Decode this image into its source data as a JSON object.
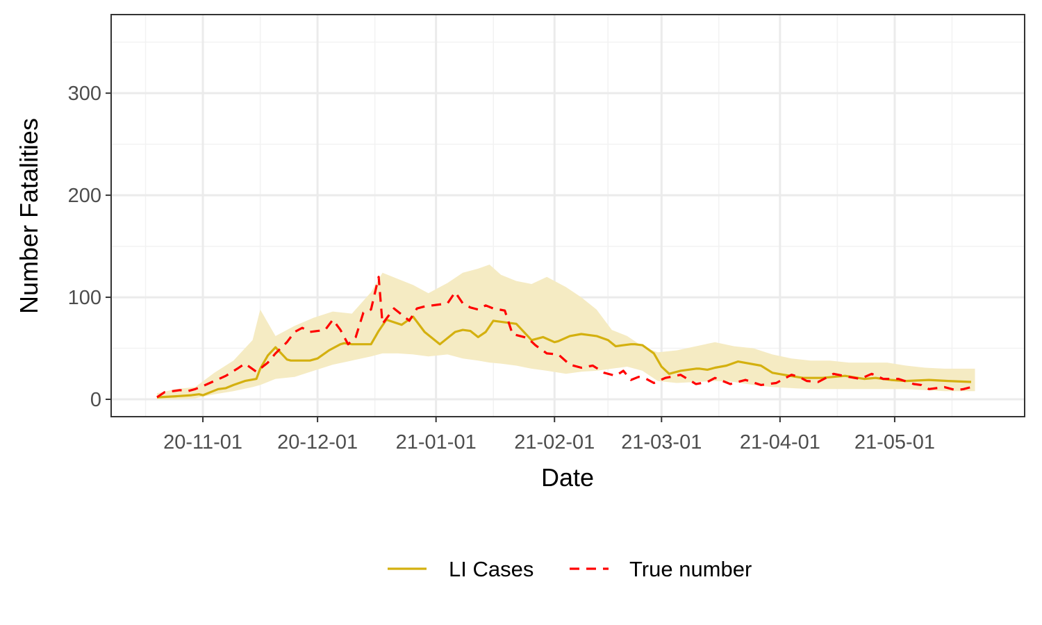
{
  "chart_data": {
    "type": "line",
    "xlabel": "Date",
    "ylabel": "Number Fatalities",
    "ylim": [
      -17,
      377
    ],
    "xlim": [
      "2020-10-08",
      "2021-06-04"
    ],
    "y_ticks": [
      0,
      100,
      200,
      300
    ],
    "x_ticks": [
      "2020-11-01",
      "2020-12-01",
      "2021-01-01",
      "2021-02-01",
      "2021-03-01",
      "2021-04-01",
      "2021-05-01"
    ],
    "x_tick_labels": [
      "20-11-01",
      "20-12-01",
      "21-01-01",
      "21-02-01",
      "21-03-01",
      "21-04-01",
      "21-05-01"
    ],
    "grid": true,
    "legend_position": "bottom",
    "band": {
      "series": "LI Cases",
      "color": "#f5ebc3",
      "x": [
        "2020-10-20",
        "2020-10-25",
        "2020-10-30",
        "2020-11-04",
        "2020-11-09",
        "2020-11-14",
        "2020-11-16",
        "2020-11-20",
        "2020-11-25",
        "2020-11-30",
        "2020-12-05",
        "2020-12-10",
        "2020-12-15",
        "2020-12-18",
        "2020-12-22",
        "2020-12-26",
        "2020-12-30",
        "2021-01-04",
        "2021-01-08",
        "2021-01-12",
        "2021-01-15",
        "2021-01-18",
        "2021-01-22",
        "2021-01-26",
        "2021-01-30",
        "2021-02-04",
        "2021-02-08",
        "2021-02-12",
        "2021-02-16",
        "2021-02-20",
        "2021-02-24",
        "2021-02-28",
        "2021-03-05",
        "2021-03-10",
        "2021-03-15",
        "2021-03-20",
        "2021-03-25",
        "2021-03-30",
        "2021-04-04",
        "2021-04-09",
        "2021-04-14",
        "2021-04-19",
        "2021-04-24",
        "2021-04-29",
        "2021-05-04",
        "2021-05-09",
        "2021-05-14",
        "2021-05-19",
        "2021-05-22"
      ],
      "lower": [
        0,
        0,
        1,
        5,
        8,
        12,
        14,
        20,
        22,
        28,
        34,
        38,
        42,
        45,
        45,
        44,
        42,
        44,
        40,
        38,
        36,
        35,
        33,
        30,
        28,
        25,
        27,
        28,
        30,
        32,
        28,
        18,
        16,
        17,
        18,
        17,
        14,
        12,
        11,
        10,
        10,
        10,
        10,
        10,
        10,
        9,
        8,
        8,
        8
      ],
      "upper": [
        6,
        10,
        12,
        26,
        38,
        58,
        88,
        62,
        72,
        80,
        86,
        84,
        105,
        124,
        118,
        112,
        104,
        114,
        124,
        128,
        132,
        122,
        116,
        113,
        120,
        110,
        100,
        88,
        68,
        62,
        52,
        46,
        48,
        52,
        56,
        52,
        50,
        44,
        40,
        38,
        38,
        36,
        36,
        36,
        33,
        31,
        30,
        30,
        30
      ]
    },
    "series": [
      {
        "name": "LI Cases",
        "color": "#d4b00f",
        "dash": "solid",
        "x": [
          "2020-10-20",
          "2020-10-25",
          "2020-10-29",
          "2020-10-31",
          "2020-11-01",
          "2020-11-03",
          "2020-11-05",
          "2020-11-07",
          "2020-11-09",
          "2020-11-12",
          "2020-11-15",
          "2020-11-16",
          "2020-11-18",
          "2020-11-20",
          "2020-11-23",
          "2020-11-24",
          "2020-11-26",
          "2020-11-29",
          "2020-12-01",
          "2020-12-04",
          "2020-12-07",
          "2020-12-08",
          "2020-12-10",
          "2020-12-13",
          "2020-12-15",
          "2020-12-17",
          "2020-12-19",
          "2020-12-23",
          "2020-12-26",
          "2020-12-29",
          "2021-01-02",
          "2021-01-06",
          "2021-01-08",
          "2021-01-10",
          "2021-01-12",
          "2021-01-14",
          "2021-01-16",
          "2021-01-22",
          "2021-01-26",
          "2021-01-29",
          "2021-02-01",
          "2021-02-02",
          "2021-02-05",
          "2021-02-08",
          "2021-02-12",
          "2021-02-15",
          "2021-02-17",
          "2021-02-19",
          "2021-02-21",
          "2021-02-22",
          "2021-02-24",
          "2021-02-27",
          "2021-03-01",
          "2021-03-03",
          "2021-03-04",
          "2021-03-06",
          "2021-03-10",
          "2021-03-11",
          "2021-03-13",
          "2021-03-15",
          "2021-03-18",
          "2021-03-21",
          "2021-03-27",
          "2021-03-30",
          "2021-04-02",
          "2021-04-07",
          "2021-04-12",
          "2021-04-18",
          "2021-04-23",
          "2021-04-26",
          "2021-04-30",
          "2021-05-04",
          "2021-05-10",
          "2021-05-15",
          "2021-05-21"
        ],
        "values": [
          2,
          3,
          4,
          5,
          4,
          7,
          10,
          11,
          14,
          18,
          20,
          30,
          43,
          51,
          39,
          38,
          38,
          38,
          40,
          48,
          54,
          55,
          54,
          54,
          54,
          67,
          78,
          73,
          81,
          66,
          54,
          66,
          68,
          67,
          61,
          66,
          77,
          74,
          58,
          61,
          56,
          57,
          62,
          64,
          62,
          58,
          52,
          53,
          54,
          54,
          53,
          45,
          32,
          25,
          26,
          28,
          30,
          30,
          29,
          31,
          33,
          37,
          33,
          26,
          24,
          21,
          21,
          23,
          20,
          21,
          19,
          18,
          19,
          18,
          17
        ]
      },
      {
        "name": "True number",
        "color": "#ff0000",
        "dash": "dashed",
        "x": [
          "2020-10-20",
          "2020-10-22",
          "2020-10-24",
          "2020-10-26",
          "2020-10-28",
          "2020-10-30",
          "2020-11-01",
          "2020-11-04",
          "2020-11-07",
          "2020-11-10",
          "2020-11-12",
          "2020-11-15",
          "2020-11-18",
          "2020-11-20",
          "2020-11-23",
          "2020-11-25",
          "2020-11-27",
          "2020-11-29",
          "2020-12-01",
          "2020-12-03",
          "2020-12-05",
          "2020-12-07",
          "2020-12-09",
          "2020-12-11",
          "2020-12-13",
          "2020-12-15",
          "2020-12-17",
          "2020-12-18",
          "2020-12-19",
          "2020-12-21",
          "2020-12-23",
          "2020-12-25",
          "2020-12-27",
          "2020-12-29",
          "2020-12-31",
          "2021-01-04",
          "2021-01-06",
          "2021-01-08",
          "2021-01-10",
          "2021-01-12",
          "2021-01-14",
          "2021-01-16",
          "2021-01-19",
          "2021-01-21",
          "2021-01-25",
          "2021-01-27",
          "2021-01-30",
          "2021-02-02",
          "2021-02-05",
          "2021-02-08",
          "2021-02-11",
          "2021-02-14",
          "2021-02-17",
          "2021-02-19",
          "2021-02-21",
          "2021-02-23",
          "2021-02-25",
          "2021-02-27",
          "2021-03-02",
          "2021-03-06",
          "2021-03-10",
          "2021-03-13",
          "2021-03-15",
          "2021-03-19",
          "2021-03-23",
          "2021-03-27",
          "2021-03-31",
          "2021-04-04",
          "2021-04-06",
          "2021-04-08",
          "2021-04-11",
          "2021-04-15",
          "2021-04-19",
          "2021-04-22",
          "2021-04-25",
          "2021-04-28",
          "2021-05-02",
          "2021-05-06",
          "2021-05-08",
          "2021-05-10",
          "2021-05-14",
          "2021-05-17",
          "2021-05-19",
          "2021-05-21"
        ],
        "values": [
          2,
          7,
          8,
          9,
          8,
          10,
          13,
          18,
          23,
          30,
          35,
          27,
          36,
          45,
          56,
          66,
          70,
          66,
          67,
          68,
          78,
          68,
          54,
          61,
          85,
          88,
          120,
          74,
          79,
          89,
          83,
          77,
          89,
          91,
          92,
          94,
          105,
          94,
          90,
          88,
          92,
          89,
          87,
          64,
          60,
          53,
          45,
          44,
          34,
          31,
          33,
          26,
          23,
          28,
          19,
          22,
          20,
          16,
          21,
          24,
          15,
          17,
          21,
          15,
          19,
          14,
          16,
          24,
          22,
          18,
          17,
          25,
          22,
          20,
          25,
          20,
          20,
          15,
          14,
          10,
          12,
          9,
          10,
          12
        ]
      }
    ]
  }
}
